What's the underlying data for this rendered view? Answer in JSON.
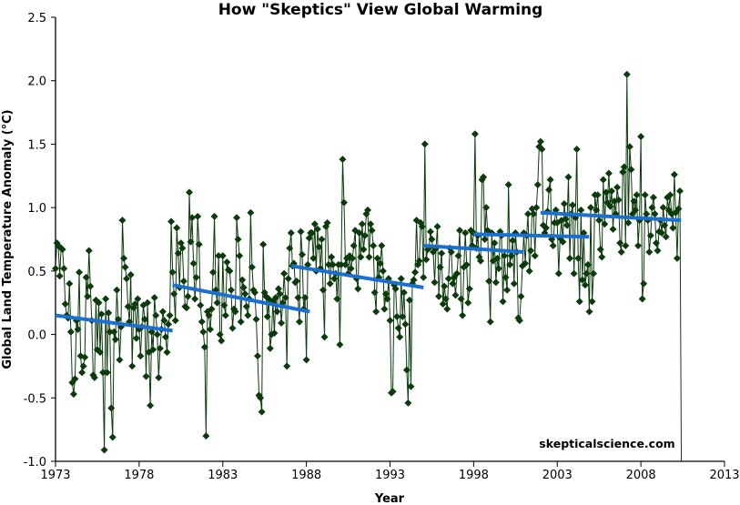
{
  "chart_data": {
    "type": "line",
    "title": "How \"Skeptics\" View Global Warming",
    "xlabel": "Year",
    "ylabel": "Global Land Temperature Anomaly (°C)",
    "xlim": [
      1973,
      2013
    ],
    "ylim": [
      -1.0,
      2.5
    ],
    "x_ticks": [
      1973,
      1978,
      1983,
      1988,
      1993,
      1998,
      2003,
      2008,
      2013
    ],
    "y_ticks": [
      "-1.0",
      "-0.5",
      "0.0",
      "0.5",
      "1.0",
      "1.5",
      "2.0",
      "2.5"
    ],
    "grid": false,
    "legend": "none",
    "watermark": "skepticalscience.com",
    "colors": {
      "series": "#0b3a0b",
      "trend": "#1a6fd0"
    },
    "series": [
      {
        "frequency": "monthly",
        "start": "1973-01",
        "values": [
          0.52,
          0.72,
          0.7,
          0.46,
          0.68,
          0.67,
          0.52,
          0.24,
          0.15,
          0.13,
          0.4,
          0.02,
          -0.38,
          -0.47,
          -0.35,
          0.11,
          0.04,
          0.49,
          -0.17,
          -0.3,
          -0.25,
          -0.18,
          0.45,
          0.3,
          0.66,
          0.38,
          0.11,
          -0.32,
          -0.34,
          0.27,
          -0.12,
          0.25,
          -0.14,
          0.16,
          -0.3,
          -0.91,
          0.28,
          -0.3,
          0.17,
          0.02,
          -0.58,
          -0.81,
          0.02,
          -0.04,
          0.35,
          0.12,
          -0.2,
          0.06,
          0.9,
          0.6,
          0.53,
          0.44,
          0.22,
          0.1,
          0.47,
          -0.25,
          0.21,
          0.24,
          -0.03,
          0.28,
          0.04,
          -0.17,
          0.06,
          0.23,
          0.12,
          -0.33,
          0.25,
          -0.14,
          -0.56,
          0.02,
          -0.12,
          0.29,
          0.15,
          0.0,
          -0.34,
          -0.11,
          0.04,
          0.18,
          0.11,
          -0.02,
          -0.14,
          0.08,
          0.15,
          0.89,
          0.49,
          0.32,
          0.11,
          0.84,
          0.64,
          0.37,
          0.72,
          0.68,
          0.42,
          0.22,
          0.21,
          0.3,
          1.12,
          0.73,
          0.92,
          0.56,
          0.28,
          0.45,
          0.93,
          0.71,
          0.23,
          0.1,
          0.02,
          -0.1,
          -0.8,
          0.18,
          0.15,
          0.04,
          0.2,
          0.49,
          0.93,
          0.35,
          0.25,
          0.62,
          0.0,
          -0.05,
          0.62,
          0.23,
          0.15,
          0.57,
          0.51,
          0.5,
          0.35,
          0.05,
          0.2,
          0.18,
          0.92,
          0.75,
          0.62,
          0.1,
          0.43,
          0.37,
          0.32,
          0.22,
          0.15,
          0.28,
          0.96,
          0.53,
          0.35,
          0.33,
          0.12,
          -0.17,
          -0.48,
          -0.5,
          -0.61,
          0.71,
          0.33,
          0.3,
          0.14,
          0.28,
          -0.11,
          0.0,
          0.26,
          0.01,
          0.29,
          0.18,
          0.36,
          0.32,
          0.09,
          0.25,
          0.48,
          0.29,
          -0.25,
          0.44,
          0.68,
          0.8,
          0.54,
          0.56,
          0.41,
          0.42,
          0.29,
          0.1,
          0.81,
          0.63,
          0.2,
          0.29,
          -0.2,
          0.55,
          0.76,
          0.8,
          0.8,
          0.6,
          0.87,
          0.5,
          0.83,
          0.69,
          0.52,
          0.75,
          0.35,
          -0.02,
          0.85,
          0.88,
          0.55,
          0.4,
          0.61,
          0.55,
          0.44,
          0.48,
          0.28,
          0.55,
          -0.08,
          0.55,
          1.38,
          1.04,
          0.55,
          0.6,
          0.48,
          0.62,
          0.52,
          0.6,
          0.7,
          0.82,
          0.44,
          0.36,
          0.8,
          0.61,
          0.87,
          0.67,
          0.78,
          0.95,
          0.98,
          0.61,
          0.87,
          0.82,
          0.7,
          0.33,
          0.18,
          0.6,
          0.45,
          0.56,
          0.7,
          0.5,
          0.2,
          0.32,
          0.28,
          0.44,
          0.11,
          -0.46,
          -0.45,
          0.39,
          0.36,
          0.14,
          0.05,
          -0.02,
          0.44,
          0.14,
          0.33,
          0.08,
          -0.28,
          -0.54,
          0.27,
          -0.41,
          0.4,
          0.43,
          0.49,
          0.9,
          0.55,
          0.58,
          0.88,
          0.85,
          0.45,
          1.5,
          0.59,
          0.67,
          0.68,
          0.81,
          0.75,
          0.65,
          0.41,
          0.68,
          0.85,
          0.3,
          0.53,
          0.64,
          0.24,
          0.38,
          0.28,
          0.2,
          0.44,
          0.68,
          0.65,
          0.4,
          0.45,
          0.31,
          0.48,
          0.62,
          0.82,
          0.28,
          0.15,
          0.53,
          0.8,
          0.55,
          0.25,
          0.36,
          0.82,
          0.7,
          0.8,
          1.58,
          0.68,
          0.78,
          0.61,
          0.58,
          1.22,
          1.24,
          0.75,
          1.0,
          0.82,
          0.42,
          0.1,
          0.8,
          0.58,
          0.72,
          0.41,
          0.6,
          0.52,
          0.81,
          0.78,
          0.26,
          0.62,
          0.45,
          0.35,
          1.18,
          0.55,
          0.62,
          0.74,
          0.4,
          0.8,
          0.65,
          0.13,
          0.11,
          0.3,
          0.54,
          0.8,
          0.56,
          0.78,
          0.95,
          0.5,
          0.66,
          0.99,
          0.95,
          0.62,
          1.0,
          1.18,
          1.48,
          1.52,
          1.46,
          0.86,
          0.8,
          0.84,
          0.97,
          1.14,
          1.22,
          0.75,
          0.7,
          0.88,
          0.98,
          0.88,
          0.48,
          0.76,
          0.9,
          0.73,
          1.03,
          0.91,
          0.86,
          1.24,
          0.6,
          0.95,
          1.02,
          0.48,
          0.92,
          1.46,
          0.6,
          0.26,
          0.98,
          0.43,
          0.8,
          0.39,
          0.48,
          0.55,
          0.18,
          1.0,
          0.26,
          0.48,
          1.1,
          0.98,
          1.1,
          0.9,
          0.67,
          0.61,
          1.22,
          0.87,
          1.12,
          1.04,
          1.27,
          1.01,
          1.13,
          0.83,
          1.05,
          0.95,
          1.16,
          1.06,
          0.72,
          0.65,
          1.28,
          1.32,
          0.7,
          2.05,
          0.88,
          1.48,
          1.3,
          0.95,
          1.05,
          0.98,
          1.1,
          0.7,
          0.9,
          1.56,
          0.28,
          0.4,
          1.1,
          0.95,
          0.9,
          0.65,
          0.78,
          1.0,
          1.08,
          0.95,
          0.72,
          0.66,
          0.81,
          0.9,
          0.8,
          1.0,
          0.86,
          0.77,
          1.08,
          0.98,
          1.1,
          0.95,
          0.84,
          1.26,
          0.96,
          0.6,
          0.99,
          1.13,
          -1.0
        ]
      }
    ],
    "trend_segments": [
      {
        "x": [
          1973.0,
          1980.0
        ],
        "y": [
          0.15,
          0.03
        ]
      },
      {
        "x": [
          1980.0,
          1988.2
        ],
        "y": [
          0.39,
          0.18
        ]
      },
      {
        "x": [
          1987.1,
          1995.0
        ],
        "y": [
          0.54,
          0.37
        ]
      },
      {
        "x": [
          1995.0,
          2001.0
        ],
        "y": [
          0.7,
          0.65
        ]
      },
      {
        "x": [
          1998.0,
          2004.9
        ],
        "y": [
          0.79,
          0.77
        ]
      },
      {
        "x": [
          2002.0,
          2010.4
        ],
        "y": [
          0.96,
          0.9
        ]
      }
    ]
  }
}
